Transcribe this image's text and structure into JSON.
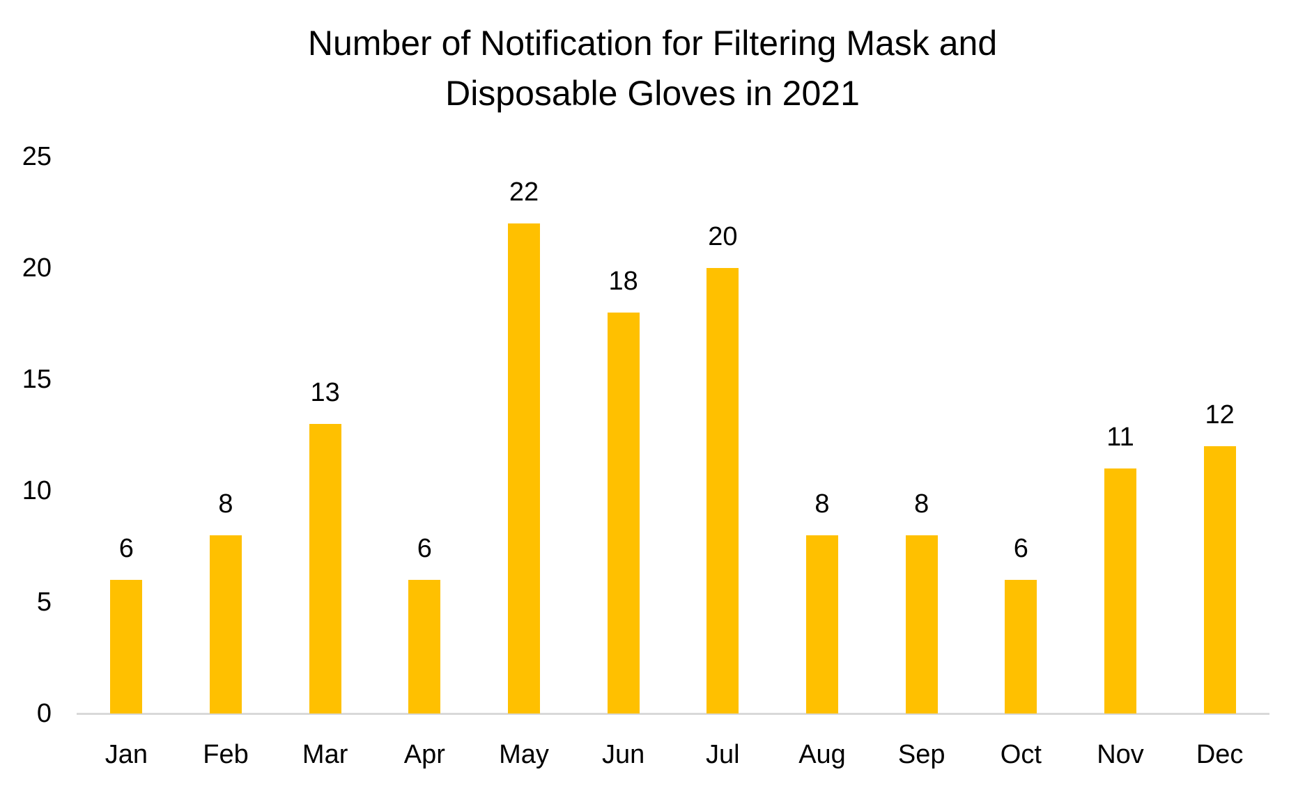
{
  "chart_data": {
    "type": "bar",
    "title": "Number of Notification for Filtering Mask and Disposable Gloves in 2021",
    "title_lines": [
      "Number of Notification for Filtering Mask and",
      "Disposable Gloves in 2021"
    ],
    "categories": [
      "Jan",
      "Feb",
      "Mar",
      "Apr",
      "May",
      "Jun",
      "Jul",
      "Aug",
      "Sep",
      "Oct",
      "Nov",
      "Dec"
    ],
    "values": [
      6,
      8,
      13,
      6,
      22,
      18,
      20,
      8,
      8,
      6,
      11,
      12
    ],
    "data_labels": [
      6,
      8,
      13,
      6,
      22,
      18,
      20,
      8,
      8,
      6,
      11,
      12
    ],
    "xlabel": "",
    "ylabel": "",
    "ylim": [
      0,
      25
    ],
    "yticks": [
      0,
      5,
      10,
      15,
      20,
      25
    ],
    "grid": false,
    "legend": false,
    "colors": {
      "bar": "#FFC000",
      "axis_line": "#D9D9D9",
      "text": "#000000",
      "background": "#FFFFFF"
    }
  }
}
